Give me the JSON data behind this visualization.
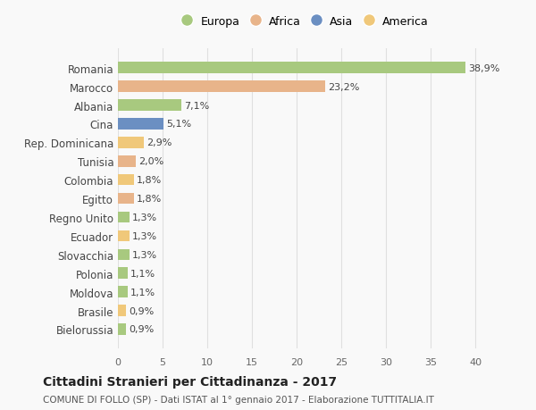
{
  "countries": [
    "Romania",
    "Marocco",
    "Albania",
    "Cina",
    "Rep. Dominicana",
    "Tunisia",
    "Colombia",
    "Egitto",
    "Regno Unito",
    "Ecuador",
    "Slovacchia",
    "Polonia",
    "Moldova",
    "Brasile",
    "Bielorussia"
  ],
  "values": [
    38.9,
    23.2,
    7.1,
    5.1,
    2.9,
    2.0,
    1.8,
    1.8,
    1.3,
    1.3,
    1.3,
    1.1,
    1.1,
    0.9,
    0.9
  ],
  "labels": [
    "38,9%",
    "23,2%",
    "7,1%",
    "5,1%",
    "2,9%",
    "2,0%",
    "1,8%",
    "1,8%",
    "1,3%",
    "1,3%",
    "1,3%",
    "1,1%",
    "1,1%",
    "0,9%",
    "0,9%"
  ],
  "colors": [
    "#a8c97f",
    "#e8b48a",
    "#a8c97f",
    "#6b8fc2",
    "#f0c87a",
    "#e8b48a",
    "#f0c87a",
    "#e8b48a",
    "#a8c97f",
    "#f0c87a",
    "#a8c97f",
    "#a8c97f",
    "#a8c97f",
    "#f0c87a",
    "#a8c97f"
  ],
  "categories": [
    "Europa",
    "Africa",
    "Asia",
    "America"
  ],
  "legend_colors": [
    "#a8c97f",
    "#e8b48a",
    "#6b8fc2",
    "#f0c87a"
  ],
  "title": "Cittadini Stranieri per Cittadinanza - 2017",
  "subtitle": "COMUNE DI FOLLO (SP) - Dati ISTAT al 1° gennaio 2017 - Elaborazione TUTTITALIA.IT",
  "xlim": [
    0,
    42
  ],
  "xticks": [
    0,
    5,
    10,
    15,
    20,
    25,
    30,
    35,
    40
  ],
  "background_color": "#f9f9f9",
  "grid_color": "#e0e0e0"
}
